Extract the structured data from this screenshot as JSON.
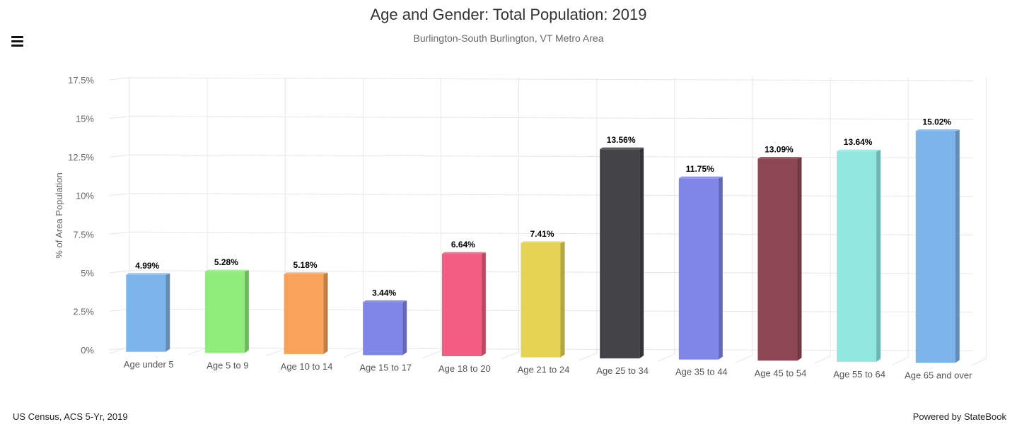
{
  "header": {
    "title": "Age and Gender: Total Population: 2019",
    "subtitle": "Burlington-South Burlington, VT Metro Area",
    "menu_icon": "hamburger-menu-icon"
  },
  "footer": {
    "source": "US Census, ACS 5-Yr, 2019",
    "powered_by": "Powered by StateBook"
  },
  "chart_data": {
    "type": "bar",
    "title": "Age and Gender: Total Population: 2019",
    "subtitle": "Burlington-South Burlington, VT Metro Area",
    "xlabel": "",
    "ylabel": "% of Area Population",
    "ylim": [
      0,
      17.5
    ],
    "yticks": [
      "0%",
      "2.5%",
      "5%",
      "7.5%",
      "10%",
      "12.5%",
      "15%",
      "17.5%"
    ],
    "grid": true,
    "legend": "none",
    "categories": [
      "Age under 5",
      "Age 5 to 9",
      "Age 10 to 14",
      "Age 15 to 17",
      "Age 18 to 20",
      "Age 21 to 24",
      "Age 25 to 34",
      "Age 35 to 44",
      "Age 45 to 54",
      "Age 55 to 64",
      "Age 65 and over"
    ],
    "values": [
      4.99,
      5.28,
      5.18,
      3.44,
      6.64,
      7.41,
      13.56,
      11.75,
      13.09,
      13.64,
      15.02
    ],
    "value_labels": [
      "4.99%",
      "5.28%",
      "5.18%",
      "3.44%",
      "6.64%",
      "7.41%",
      "13.56%",
      "11.75%",
      "13.09%",
      "13.64%",
      "15.02%"
    ],
    "colors": [
      "#7cb5ec",
      "#90ed7d",
      "#f7a35c",
      "#8085e9",
      "#f15c80",
      "#e4d354",
      "#434348",
      "#8085e9",
      "#8d4653",
      "#91e8e1",
      "#7cb5ec"
    ]
  }
}
